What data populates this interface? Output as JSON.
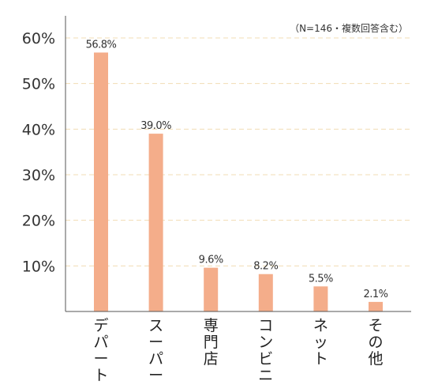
{
  "chart_data": {
    "type": "bar",
    "note": "（N=146・複数回答含む）",
    "categories": [
      "デパート",
      "スーパー",
      "専門店",
      "コンビニ",
      "ネット",
      "その他"
    ],
    "series": [
      {
        "values": [
          56.8,
          39.0,
          9.6,
          8.2,
          5.5,
          2.1
        ],
        "labels": [
          "56.8%",
          "39.0%",
          "9.6%",
          "8.2%",
          "5.5%",
          "2.1%"
        ]
      }
    ],
    "ylim": [
      0,
      60
    ],
    "yticks": [
      10,
      20,
      30,
      40,
      50,
      60
    ],
    "ytick_labels": [
      "10%",
      "20%",
      "30%",
      "40%",
      "50%",
      "60%"
    ],
    "grid": true,
    "bar_color": "#f4ad8a",
    "grid_color": "#f1dcb4"
  }
}
